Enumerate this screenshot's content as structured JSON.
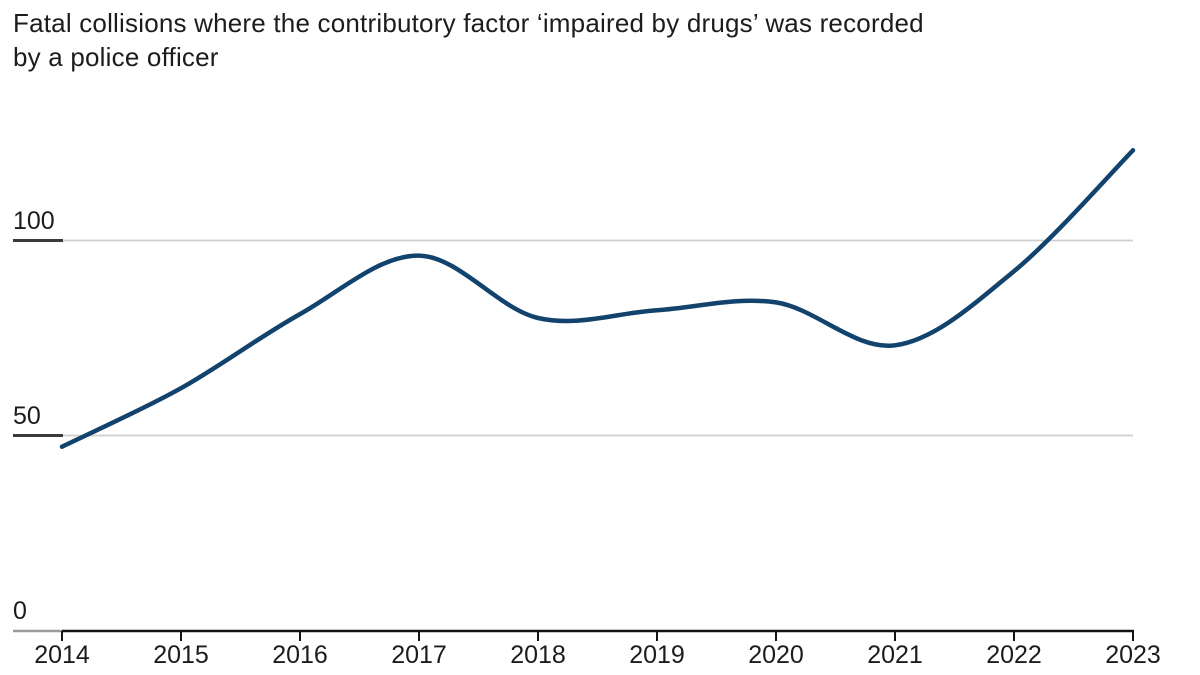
{
  "title": {
    "line1": "Fatal collisions where the contributory factor ‘impaired by drugs’ was recorded",
    "line2": "by a police officer"
  },
  "chart_data": {
    "type": "line",
    "title": "Fatal collisions where the contributory factor ‘impaired by drugs’ was recorded by a police officer",
    "x": [
      2014,
      2015,
      2016,
      2017,
      2018,
      2019,
      2020,
      2021,
      2022,
      2023
    ],
    "x_tick_labels": [
      "2014",
      "2015",
      "2016",
      "2017",
      "2018",
      "2019",
      "2020",
      "2021",
      "2022",
      "2023"
    ],
    "values": [
      47,
      62,
      81,
      96,
      80,
      82,
      84,
      73,
      92,
      123
    ],
    "y_ticks": [
      0,
      50,
      100
    ],
    "y_tick_labels": [
      "0",
      "50",
      "100"
    ],
    "ylim": [
      0,
      130
    ],
    "xlabel": "",
    "ylabel": "",
    "grid": "horizontal gridlines at 50 and 100, baseline axis at 0",
    "legend": "none",
    "colors": {
      "line": "#12436d",
      "gridline": "#cfcfcf",
      "axis": "#141414",
      "tick_underline_dark": "#3a3a3a",
      "tick_underline_zero": "#9a9a9a",
      "text": "#1c1c1c"
    }
  }
}
